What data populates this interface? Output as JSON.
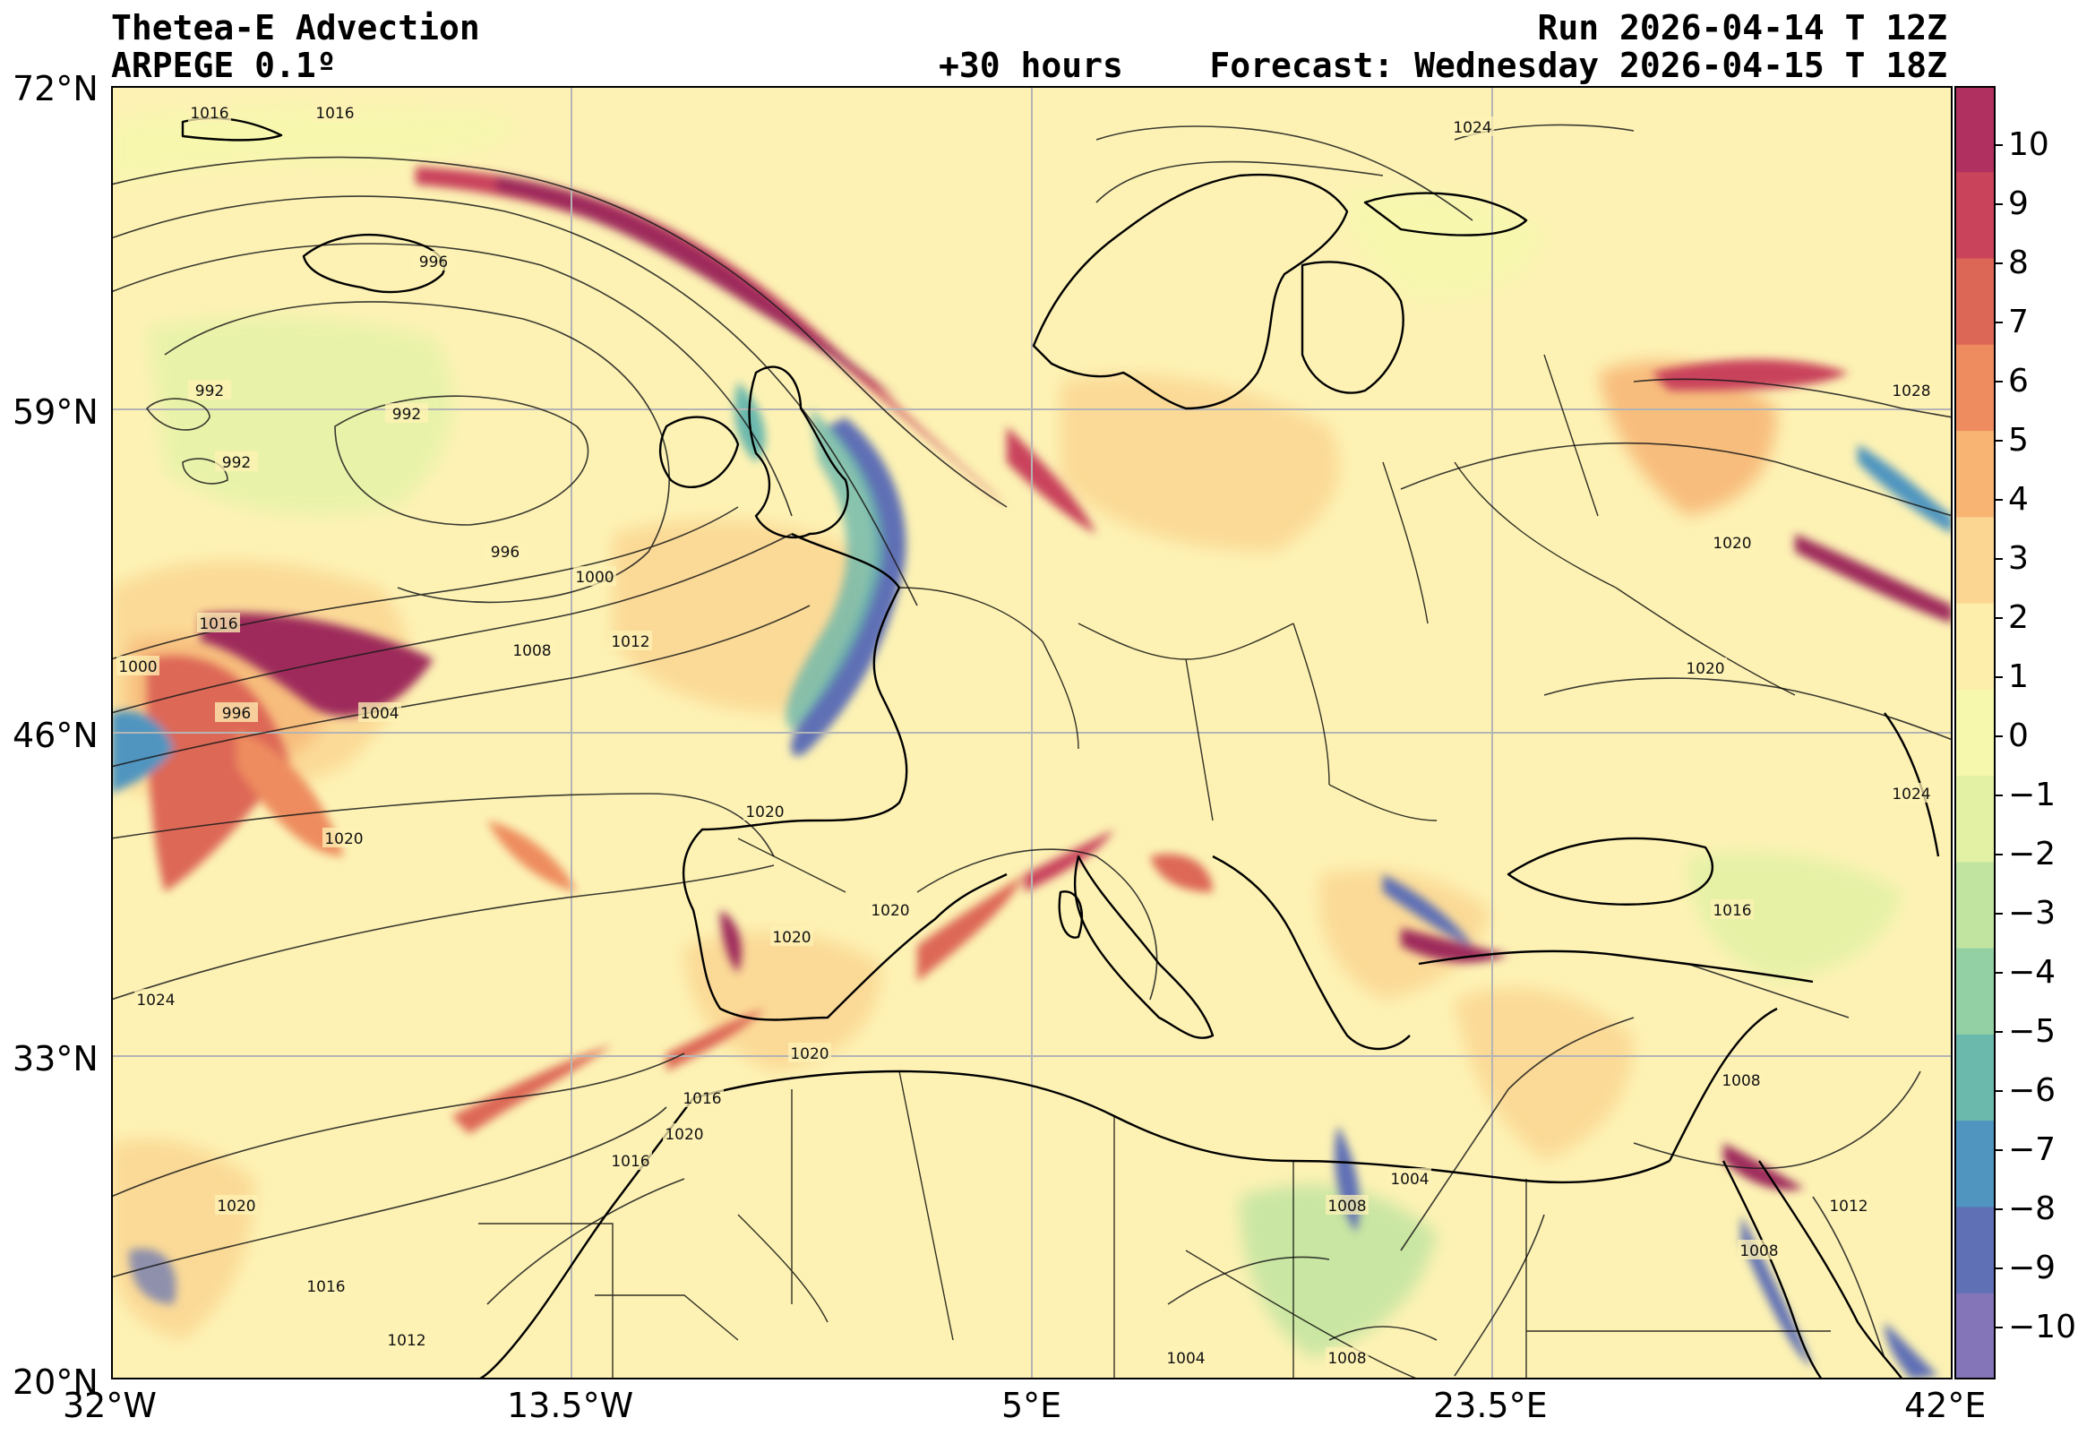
{
  "header": {
    "title_left": "Thetea-E Advection",
    "subtitle_left": "ARPEGE 0.1º",
    "lead_time": "+30 hours",
    "run": "Run 2026-04-14 T 12Z",
    "forecast": "Forecast: Wednesday 2026-04-15 T 18Z"
  },
  "axes": {
    "lat_ticks": [
      "72°N",
      "59°N",
      "46°N",
      "33°N",
      "20°N"
    ],
    "lon_ticks": [
      "32°W",
      "13.5°W",
      "5°E",
      "23.5°E",
      "42°E"
    ]
  },
  "colorbar": {
    "ticks": [
      "10",
      "9",
      "8",
      "7",
      "6",
      "5",
      "4",
      "3",
      "2",
      "1",
      "0",
      "−1",
      "−2",
      "−3",
      "−4",
      "−5",
      "−6",
      "−7",
      "−8",
      "−9",
      "−10"
    ],
    "colors": [
      "#b0305f",
      "#c9435b",
      "#dd6757",
      "#ee8c5f",
      "#f7b473",
      "#fbd692",
      "#fdeeab",
      "#f6f8ae",
      "#e2f1a4",
      "#c1e4a0",
      "#93d0a4",
      "#6bb8ad",
      "#4f95c0",
      "#5f70b5",
      "#8474b8"
    ]
  },
  "isobar_labels": [
    "1016",
    "1016",
    "1024",
    "996",
    "992",
    "992",
    "992",
    "996",
    "1000",
    "1008",
    "1012",
    "1016",
    "1000",
    "996",
    "1004",
    "1020",
    "1020",
    "1024",
    "1020",
    "1020",
    "1020",
    "1020",
    "1016",
    "1016",
    "1020",
    "1016",
    "1012",
    "1008",
    "1004",
    "1004",
    "1008",
    "1028",
    "1020",
    "1020",
    "1024",
    "1016",
    "1008",
    "1012",
    "1008"
  ]
}
